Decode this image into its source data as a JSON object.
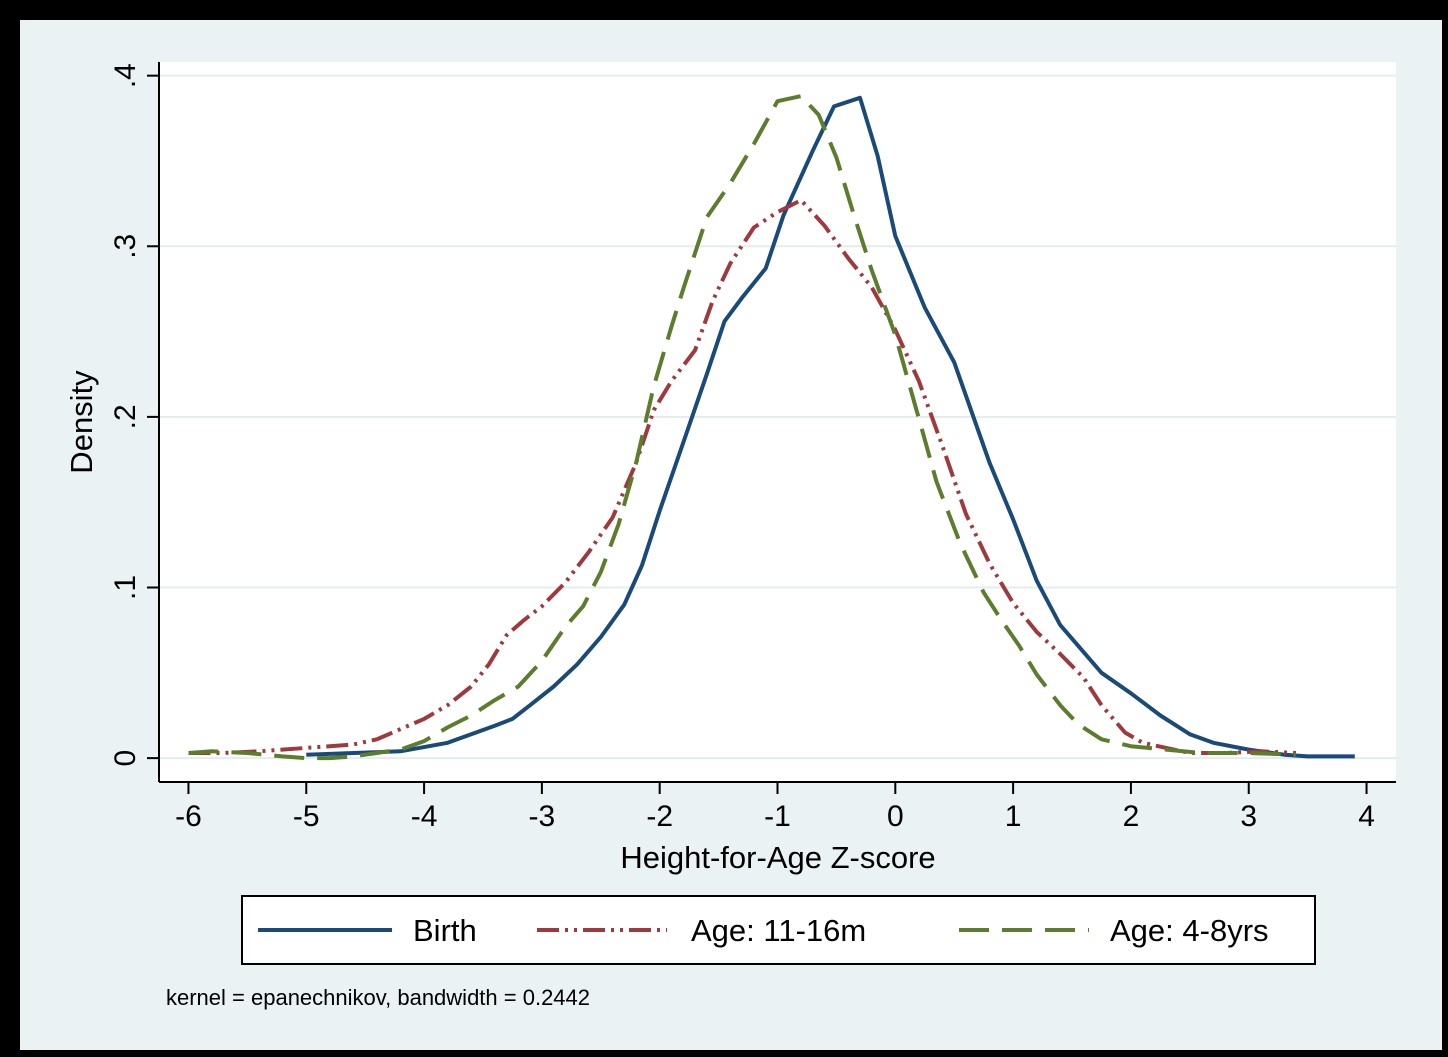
{
  "chart_data": {
    "type": "line",
    "title": "",
    "xlabel": "Height-for-Age Z-score",
    "ylabel": "Density",
    "xlim": [
      -6.25,
      4.25
    ],
    "ylim": [
      -0.014,
      0.408
    ],
    "xticks": [
      -6,
      -5,
      -4,
      -3,
      -2,
      -1,
      0,
      1,
      2,
      3,
      4
    ],
    "xtick_labels": [
      "-6",
      "-5",
      "-4",
      "-3",
      "-2",
      "-1",
      "0",
      "1",
      "2",
      "3",
      "4"
    ],
    "yticks": [
      0,
      0.1,
      0.2,
      0.3,
      0.4
    ],
    "ytick_labels": [
      "0",
      ".1",
      ".2",
      ".3",
      ".4"
    ],
    "grid": true,
    "legend_position": "bottom",
    "note": "kernel = epanechnikov, bandwidth = 0.2442",
    "series": [
      {
        "name": "Birth",
        "color": "#1a4a7a",
        "style": "solid",
        "points": [
          [
            -5.0,
            0.002
          ],
          [
            -4.6,
            0.003
          ],
          [
            -4.2,
            0.004
          ],
          [
            -3.8,
            0.009
          ],
          [
            -3.6,
            0.014
          ],
          [
            -3.4,
            0.019
          ],
          [
            -3.25,
            0.023
          ],
          [
            -3.1,
            0.031
          ],
          [
            -2.9,
            0.042
          ],
          [
            -2.7,
            0.055
          ],
          [
            -2.5,
            0.071
          ],
          [
            -2.3,
            0.09
          ],
          [
            -2.15,
            0.113
          ],
          [
            -2.0,
            0.145
          ],
          [
            -1.8,
            0.185
          ],
          [
            -1.6,
            0.225
          ],
          [
            -1.45,
            0.256
          ],
          [
            -1.3,
            0.27
          ],
          [
            -1.1,
            0.287
          ],
          [
            -0.95,
            0.318
          ],
          [
            -0.7,
            0.356
          ],
          [
            -0.52,
            0.382
          ],
          [
            -0.3,
            0.387
          ],
          [
            -0.15,
            0.353
          ],
          [
            0.0,
            0.306
          ],
          [
            0.25,
            0.264
          ],
          [
            0.5,
            0.232
          ],
          [
            0.8,
            0.173
          ],
          [
            1.0,
            0.14
          ],
          [
            1.2,
            0.104
          ],
          [
            1.4,
            0.078
          ],
          [
            1.6,
            0.062
          ],
          [
            1.75,
            0.05
          ],
          [
            2.0,
            0.038
          ],
          [
            2.25,
            0.025
          ],
          [
            2.5,
            0.014
          ],
          [
            2.7,
            0.009
          ],
          [
            3.0,
            0.005
          ],
          [
            3.3,
            0.002
          ],
          [
            3.5,
            0.001
          ],
          [
            3.9,
            0.001
          ]
        ]
      },
      {
        "name": "Age: 11-16m",
        "color": "#9e3a3e",
        "style": "dash-dot-dot",
        "points": [
          [
            -6.0,
            0.003
          ],
          [
            -5.7,
            0.003
          ],
          [
            -5.4,
            0.004
          ],
          [
            -5.0,
            0.006
          ],
          [
            -4.6,
            0.008
          ],
          [
            -4.4,
            0.011
          ],
          [
            -4.2,
            0.017
          ],
          [
            -4.0,
            0.023
          ],
          [
            -3.8,
            0.031
          ],
          [
            -3.6,
            0.042
          ],
          [
            -3.45,
            0.055
          ],
          [
            -3.3,
            0.072
          ],
          [
            -3.15,
            0.081
          ],
          [
            -3.0,
            0.089
          ],
          [
            -2.8,
            0.103
          ],
          [
            -2.6,
            0.121
          ],
          [
            -2.4,
            0.141
          ],
          [
            -2.2,
            0.173
          ],
          [
            -2.05,
            0.204
          ],
          [
            -1.9,
            0.221
          ],
          [
            -1.7,
            0.239
          ],
          [
            -1.55,
            0.268
          ],
          [
            -1.4,
            0.29
          ],
          [
            -1.2,
            0.311
          ],
          [
            -1.0,
            0.32
          ],
          [
            -0.8,
            0.327
          ],
          [
            -0.6,
            0.312
          ],
          [
            -0.4,
            0.293
          ],
          [
            -0.2,
            0.276
          ],
          [
            0.0,
            0.251
          ],
          [
            0.2,
            0.221
          ],
          [
            0.4,
            0.183
          ],
          [
            0.6,
            0.143
          ],
          [
            0.8,
            0.114
          ],
          [
            1.0,
            0.091
          ],
          [
            1.2,
            0.074
          ],
          [
            1.4,
            0.061
          ],
          [
            1.6,
            0.047
          ],
          [
            1.75,
            0.031
          ],
          [
            1.95,
            0.015
          ],
          [
            2.1,
            0.009
          ],
          [
            2.3,
            0.006
          ],
          [
            2.5,
            0.003
          ],
          [
            2.8,
            0.003
          ],
          [
            3.1,
            0.004
          ],
          [
            3.4,
            0.003
          ]
        ]
      },
      {
        "name": "Age: 4-8yrs",
        "color": "#5c7d2e",
        "style": "long-dash",
        "points": [
          [
            -6.0,
            0.003
          ],
          [
            -5.8,
            0.004
          ],
          [
            -5.5,
            0.003
          ],
          [
            -5.2,
            0.001
          ],
          [
            -5.0,
            0.0
          ],
          [
            -4.8,
            0.0
          ],
          [
            -4.6,
            0.001
          ],
          [
            -4.4,
            0.003
          ],
          [
            -4.2,
            0.005
          ],
          [
            -4.0,
            0.01
          ],
          [
            -3.8,
            0.018
          ],
          [
            -3.6,
            0.025
          ],
          [
            -3.4,
            0.034
          ],
          [
            -3.2,
            0.042
          ],
          [
            -3.0,
            0.057
          ],
          [
            -2.8,
            0.077
          ],
          [
            -2.65,
            0.089
          ],
          [
            -2.5,
            0.109
          ],
          [
            -2.35,
            0.137
          ],
          [
            -2.2,
            0.173
          ],
          [
            -2.05,
            0.218
          ],
          [
            -1.9,
            0.253
          ],
          [
            -1.8,
            0.275
          ],
          [
            -1.6,
            0.317
          ],
          [
            -1.4,
            0.337
          ],
          [
            -1.2,
            0.36
          ],
          [
            -1.0,
            0.385
          ],
          [
            -0.8,
            0.388
          ],
          [
            -0.65,
            0.377
          ],
          [
            -0.5,
            0.352
          ],
          [
            -0.35,
            0.318
          ],
          [
            -0.2,
            0.286
          ],
          [
            0.0,
            0.248
          ],
          [
            0.2,
            0.199
          ],
          [
            0.35,
            0.162
          ],
          [
            0.55,
            0.126
          ],
          [
            0.75,
            0.097
          ],
          [
            0.9,
            0.081
          ],
          [
            1.05,
            0.066
          ],
          [
            1.2,
            0.049
          ],
          [
            1.4,
            0.031
          ],
          [
            1.55,
            0.02
          ],
          [
            1.75,
            0.011
          ],
          [
            2.0,
            0.007
          ],
          [
            2.3,
            0.005
          ],
          [
            2.6,
            0.003
          ],
          [
            3.0,
            0.003
          ],
          [
            3.4,
            0.002
          ]
        ]
      }
    ]
  }
}
